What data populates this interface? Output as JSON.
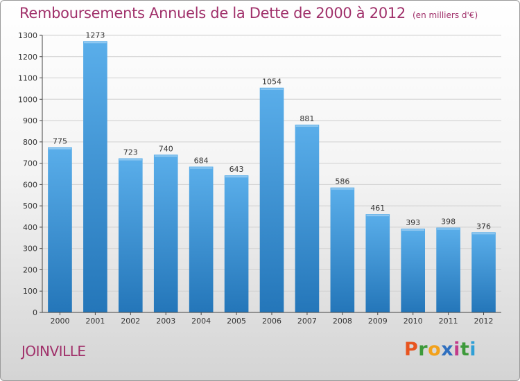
{
  "header": {
    "title": "Remboursements Annuels de la Dette de 2000 à 2012",
    "unit": "(en milliers d'€)"
  },
  "footer": {
    "city": "JOINVILLE",
    "logo_letters": [
      {
        "char": "P",
        "color": "#e8541f"
      },
      {
        "char": "r",
        "color": "#3d9a3a"
      },
      {
        "char": "o",
        "color": "#f2a11b"
      },
      {
        "char": "x",
        "color": "#2f6fbf"
      },
      {
        "char": "i",
        "color": "#c23b8a"
      },
      {
        "char": "t",
        "color": "#3d9a3a"
      },
      {
        "char": "i",
        "color": "#2f9fd6"
      }
    ]
  },
  "colors": {
    "title": "#a0306a",
    "bar_light": "#5aaeea",
    "bar_dark": "#2476b9",
    "grid": "#cfcfcf",
    "axis": "#444444"
  },
  "chart_data": {
    "type": "bar",
    "categories": [
      "2000",
      "2001",
      "2002",
      "2003",
      "2004",
      "2005",
      "2006",
      "2007",
      "2008",
      "2009",
      "2010",
      "2011",
      "2012"
    ],
    "values": [
      775,
      1273,
      723,
      740,
      684,
      643,
      1054,
      881,
      586,
      461,
      393,
      398,
      376
    ],
    "ylim": [
      0,
      1300
    ],
    "yticks": [
      0,
      100,
      200,
      300,
      400,
      500,
      600,
      700,
      800,
      900,
      1000,
      1100,
      1200,
      1300
    ],
    "grid": true,
    "xlabel": "",
    "ylabel": ""
  }
}
